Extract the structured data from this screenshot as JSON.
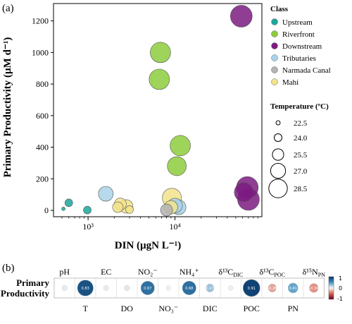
{
  "panel_a": {
    "label": "(a)",
    "legend": {
      "class_title": "Class",
      "classes": [
        {
          "name": "Upstream",
          "color": "#1aa79a"
        },
        {
          "name": "Riverfront",
          "color": "#8dcc3c"
        },
        {
          "name": "Downstream",
          "color": "#7d1b81"
        },
        {
          "name": "Tributaries",
          "color": "#a9d3e8"
        },
        {
          "name": "Narmada Canal",
          "color": "#b3b3b3"
        },
        {
          "name": "Mahi",
          "color": "#f2e38a"
        }
      ],
      "temp_title": "Temperature (ºC)",
      "temps": [
        "22.5",
        "24.0",
        "25.5",
        "27.0",
        "28.5"
      ]
    }
  },
  "chart_data": {
    "type": "scatter",
    "xlabel": "DIN (µgN L⁻¹)",
    "ylabel": "Primary Productivity (µM d⁻¹)",
    "xscale": "log",
    "xlim": [
      400,
      100000
    ],
    "ylim": [
      -40,
      1310
    ],
    "xticks": [
      1000,
      10000
    ],
    "xtick_labels": [
      "10³",
      "10⁴"
    ],
    "yticks": [
      0,
      200,
      400,
      600,
      800,
      1000,
      1200
    ],
    "grid": false,
    "legend_position": "right",
    "series": [
      {
        "name": "Upstream",
        "points": [
          {
            "x": 520,
            "y": 10,
            "t": 22.0
          },
          {
            "x": 600,
            "y": 48,
            "t": 23.5
          },
          {
            "x": 980,
            "y": 2,
            "t": 23.5
          }
        ]
      },
      {
        "name": "Riverfront",
        "points": [
          {
            "x": 6800,
            "y": 1000,
            "t": 28.0
          },
          {
            "x": 6600,
            "y": 830,
            "t": 28.0
          },
          {
            "x": 11500,
            "y": 410,
            "t": 28.0
          },
          {
            "x": 10500,
            "y": 280,
            "t": 27.5
          }
        ]
      },
      {
        "name": "Downstream",
        "points": [
          {
            "x": 58000,
            "y": 1230,
            "t": 28.5
          },
          {
            "x": 68000,
            "y": 145,
            "t": 28.5
          },
          {
            "x": 62000,
            "y": 115,
            "t": 27.5
          },
          {
            "x": 70000,
            "y": 70,
            "t": 28.5
          }
        ]
      },
      {
        "name": "Tributaries",
        "points": [
          {
            "x": 1600,
            "y": 105,
            "t": 26.0
          },
          {
            "x": 11000,
            "y": 20,
            "t": 26.0
          },
          {
            "x": 10000,
            "y": 30,
            "t": 26.0
          }
        ]
      },
      {
        "name": "Narmada Canal",
        "points": [
          {
            "x": 8000,
            "y": 2,
            "t": 25.0
          }
        ]
      },
      {
        "name": "Mahi",
        "points": [
          {
            "x": 2200,
            "y": 20,
            "t": 24.5
          },
          {
            "x": 2350,
            "y": 40,
            "t": 25.0
          },
          {
            "x": 2750,
            "y": 25,
            "t": 25.5
          },
          {
            "x": 3000,
            "y": 5,
            "t": 23.5
          },
          {
            "x": 9200,
            "y": 80,
            "t": 27.5
          },
          {
            "x": 9000,
            "y": 20,
            "t": 25.5
          }
        ]
      }
    ]
  },
  "panel_b": {
    "label": "(b)",
    "row_label_line1": "Primary",
    "row_label_line2": "Productivity",
    "colorbar_max": "1",
    "colorbar_mid": "0",
    "colorbar_min": "-1",
    "cells": [
      {
        "label": "pH",
        "value": 0.05,
        "value_text": "",
        "label_pos": "top"
      },
      {
        "label": "T",
        "value": 0.83,
        "value_text": "0.83",
        "label_pos": "bottom"
      },
      {
        "label": "EC",
        "value": -0.05,
        "value_text": "",
        "label_pos": "top"
      },
      {
        "label": "DO",
        "value": 0.07,
        "value_text": "",
        "label_pos": "bottom"
      },
      {
        "label": "NO₂⁻",
        "value": 0.67,
        "value_text": "0.67",
        "label_pos": "top"
      },
      {
        "label": "NO₃⁻",
        "value": 0.02,
        "value_text": "",
        "label_pos": "bottom"
      },
      {
        "label": "NH₄⁺",
        "value": 0.68,
        "value_text": "0.68",
        "label_pos": "top"
      },
      {
        "label": "DIC",
        "value": 0.27,
        "value_text": "0.27",
        "label_pos": "bottom"
      },
      {
        "label": "δ¹³C",
        "label_sub": "DIC",
        "value": 0.02,
        "value_text": "",
        "label_pos": "top"
      },
      {
        "label": "POC",
        "value": 0.91,
        "value_text": "0.91",
        "label_pos": "bottom"
      },
      {
        "label": "δ¹³C",
        "label_sub": "POC",
        "value": -0.28,
        "value_text": "-0.28",
        "label_pos": "top"
      },
      {
        "label": "PN",
        "value": 0.41,
        "value_text": "0.41",
        "label_pos": "bottom"
      },
      {
        "label": "δ¹⁵N",
        "label_sub": "PN",
        "value": -0.34,
        "value_text": "-0.34",
        "label_pos": "top"
      }
    ]
  }
}
